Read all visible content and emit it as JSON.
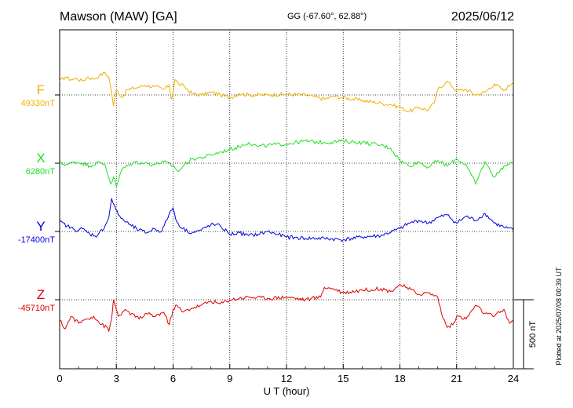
{
  "header": {
    "station": "Mawson (MAW)  [GA]",
    "coords": "GG (-67.60°,  62.88°)",
    "date": "2025/06/12"
  },
  "side_note": "Plotted at 2025/07/08 00:39 UT",
  "chart_data": {
    "type": "line",
    "xlabel": "U T (hour)",
    "xlim": [
      0,
      24
    ],
    "xticks": [
      "0",
      "3",
      "6",
      "9",
      "12",
      "15",
      "18",
      "21",
      "24"
    ],
    "scale_bar": {
      "label": "500 nT",
      "value_nT": 500
    },
    "grid": "dotted baselines and vertical lines every 3 hours",
    "series": [
      {
        "name": "F",
        "baseline_label": "49330nT",
        "baseline_nT": 49330,
        "color": "#f0b000",
        "x": [
          0,
          0.3,
          0.6,
          0.9,
          1.2,
          1.5,
          1.8,
          2.1,
          2.4,
          2.6,
          2.75,
          2.85,
          3.0,
          3.3,
          3.6,
          4.0,
          4.5,
          5.0,
          5.5,
          5.8,
          5.9,
          6.0,
          6.1,
          6.3,
          6.6,
          7.0,
          7.5,
          8.0,
          8.5,
          9.0,
          9.5,
          10,
          11,
          12,
          13,
          13.5,
          14,
          14.5,
          15,
          16,
          17,
          17.5,
          18,
          18.5,
          19,
          19.5,
          19.8,
          20,
          20.5,
          21,
          21.5,
          22,
          22.5,
          23,
          23.5,
          24
        ],
        "values": [
          100,
          130,
          110,
          120,
          100,
          130,
          115,
          140,
          160,
          130,
          20,
          -80,
          40,
          -20,
          40,
          50,
          70,
          60,
          40,
          70,
          -30,
          20,
          110,
          80,
          60,
          10,
          0,
          20,
          0,
          -20,
          10,
          0,
          0,
          5,
          0,
          -15,
          -30,
          -10,
          -20,
          -40,
          -60,
          -70,
          -90,
          -120,
          -90,
          -110,
          -60,
          40,
          100,
          30,
          40,
          0,
          20,
          80,
          30,
          100
        ]
      },
      {
        "name": "X",
        "baseline_label": "6280nT",
        "baseline_nT": 6280,
        "color": "#20e020",
        "x": [
          0,
          0.4,
          0.8,
          1.2,
          1.6,
          2.0,
          2.4,
          2.7,
          2.85,
          3.0,
          3.3,
          3.6,
          4.0,
          4.5,
          5.0,
          5.5,
          6.0,
          6.3,
          6.6,
          7.0,
          7.5,
          8.0,
          8.5,
          9.0,
          9.5,
          10,
          10.5,
          11,
          12,
          13,
          14,
          15,
          16,
          17,
          17.5,
          18,
          18.5,
          19,
          19.5,
          20,
          20.5,
          21,
          21.5,
          22,
          22.5,
          23,
          23.5,
          24
        ],
        "values": [
          0,
          -10,
          10,
          0,
          -20,
          5,
          -10,
          -150,
          -100,
          -170,
          -40,
          -20,
          10,
          0,
          -10,
          10,
          -20,
          -60,
          -10,
          30,
          40,
          60,
          80,
          100,
          120,
          150,
          120,
          130,
          140,
          160,
          150,
          160,
          150,
          130,
          110,
          20,
          -20,
          10,
          -30,
          20,
          -20,
          30,
          -10,
          -150,
          10,
          -100,
          -20,
          0
        ]
      },
      {
        "name": "Y",
        "baseline_label": "-17400nT",
        "baseline_nT": -17400,
        "color": "#0000dd",
        "x": [
          0,
          0.4,
          0.8,
          1.2,
          1.6,
          2.0,
          2.4,
          2.6,
          2.75,
          2.85,
          3.1,
          3.4,
          3.8,
          4.2,
          4.6,
          5.0,
          5.4,
          5.8,
          6.0,
          6.2,
          6.5,
          7.0,
          7.5,
          8.0,
          8.5,
          9.0,
          9.5,
          10,
          10.5,
          11,
          12,
          13,
          14,
          15,
          16,
          17,
          18,
          18.5,
          19,
          19.5,
          20,
          20.5,
          21,
          21.5,
          22,
          22.5,
          23,
          23.5,
          24
        ],
        "values": [
          70,
          40,
          10,
          20,
          -20,
          -30,
          40,
          100,
          240,
          200,
          120,
          80,
          40,
          10,
          -10,
          20,
          0,
          130,
          170,
          70,
          20,
          -10,
          10,
          50,
          40,
          -20,
          -10,
          -30,
          -20,
          0,
          -40,
          -50,
          -50,
          -60,
          -40,
          -30,
          20,
          60,
          80,
          60,
          100,
          120,
          60,
          110,
          80,
          130,
          60,
          30,
          10
        ]
      },
      {
        "name": "Z",
        "baseline_label": "-45710nT",
        "baseline_nT": -45710,
        "color": "#e00000",
        "x": [
          0,
          0.3,
          0.6,
          1.0,
          1.4,
          1.8,
          2.2,
          2.5,
          2.6,
          2.75,
          2.85,
          3.1,
          3.4,
          3.8,
          4.2,
          4.6,
          5.0,
          5.5,
          5.8,
          6.0,
          6.2,
          6.5,
          7.0,
          7.5,
          8.0,
          8.5,
          9.0,
          9.5,
          10,
          11,
          12,
          13,
          13.8,
          14,
          14.5,
          15,
          16,
          17,
          17.5,
          18,
          18.3,
          19,
          19.5,
          20,
          20.2,
          20.5,
          20.8,
          21,
          21.5,
          22,
          22.5,
          23,
          23.5,
          23.8,
          24
        ],
        "values": [
          -150,
          -210,
          -120,
          -170,
          -140,
          -120,
          -180,
          -200,
          -230,
          -140,
          0,
          -120,
          -80,
          -100,
          -140,
          -100,
          -120,
          -90,
          -180,
          -70,
          -40,
          -90,
          -60,
          -40,
          -10,
          -30,
          0,
          10,
          20,
          10,
          20,
          0,
          20,
          90,
          80,
          50,
          70,
          80,
          60,
          110,
          90,
          40,
          50,
          20,
          -100,
          -200,
          -180,
          -120,
          -140,
          -40,
          -100,
          -120,
          -70,
          -170,
          -160
        ]
      }
    ]
  }
}
